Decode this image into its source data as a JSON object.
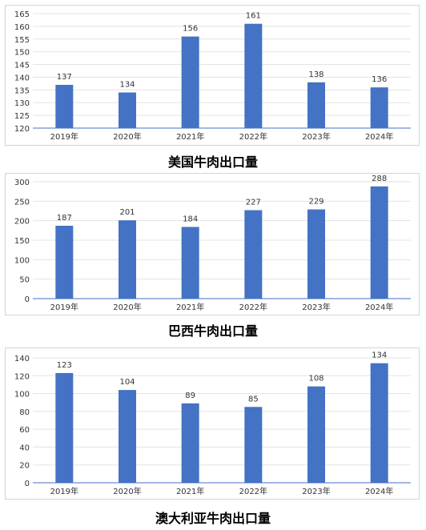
{
  "chart_data": [
    {
      "type": "bar",
      "title": "美国牛肉出口量",
      "categories": [
        "2019年",
        "2020年",
        "2021年",
        "2022年",
        "2023年",
        "2024年"
      ],
      "values": [
        137,
        134,
        156,
        161,
        138,
        136
      ],
      "ylim": [
        120,
        165
      ],
      "yticks": [
        120,
        125,
        130,
        135,
        140,
        145,
        150,
        155,
        160,
        165
      ],
      "grid": true,
      "bar_color": "#4472C4"
    },
    {
      "type": "bar",
      "title": "巴西牛肉出口量",
      "categories": [
        "2019年",
        "2020年",
        "2021年",
        "2022年",
        "2023年",
        "2024年"
      ],
      "values": [
        187,
        201,
        184,
        227,
        229,
        288
      ],
      "ylim": [
        0,
        300
      ],
      "yticks": [
        0,
        50,
        100,
        150,
        200,
        250,
        300
      ],
      "grid": true,
      "bar_color": "#4472C4"
    },
    {
      "type": "bar",
      "title": "澳大利亚牛肉出口量",
      "categories": [
        "2019年",
        "2020年",
        "2021年",
        "2022年",
        "2023年",
        "2024年"
      ],
      "values": [
        123,
        104,
        89,
        85,
        108,
        134
      ],
      "ylim": [
        0,
        140
      ],
      "yticks": [
        0,
        20,
        40,
        60,
        80,
        100,
        120,
        140
      ],
      "grid": true,
      "bar_color": "#4472C4"
    }
  ]
}
